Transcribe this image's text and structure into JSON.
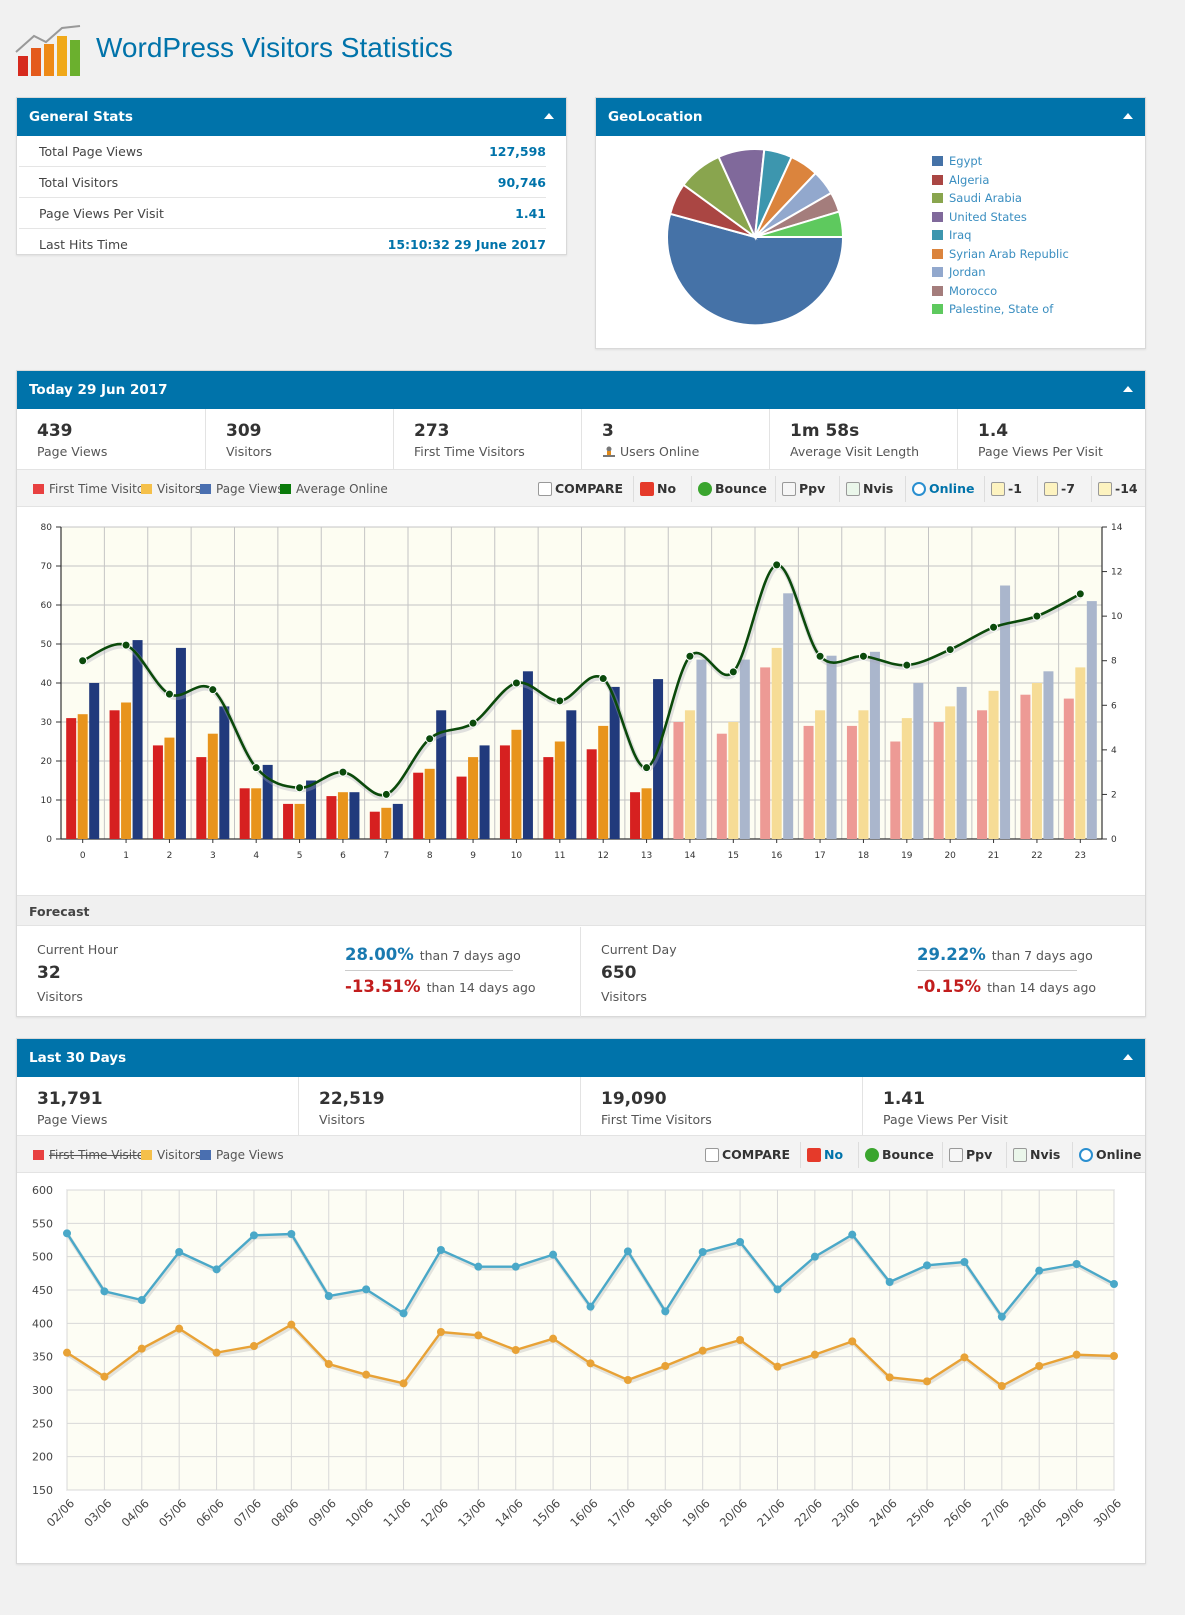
{
  "header": {
    "title": "WordPress Visitors Statistics"
  },
  "general_stats": {
    "title": "General Stats",
    "rows": [
      {
        "label": "Total Page Views",
        "value": "127,598"
      },
      {
        "label": "Total Visitors",
        "value": "90,746"
      },
      {
        "label": "Page Views Per Visit",
        "value": "1.41"
      },
      {
        "label": "Last Hits Time",
        "value": "15:10:32 29 June 2017"
      }
    ]
  },
  "geolocation": {
    "title": "GeoLocation",
    "legend": [
      {
        "name": "Egypt",
        "color": "#4572a7"
      },
      {
        "name": "Algeria",
        "color": "#aa4643"
      },
      {
        "name": "Saudi Arabia",
        "color": "#89a54e"
      },
      {
        "name": "United States",
        "color": "#80699b"
      },
      {
        "name": "Iraq",
        "color": "#3d96ae"
      },
      {
        "name": "Syrian Arab Republic",
        "color": "#db843d"
      },
      {
        "name": "Jordan",
        "color": "#92a8cd"
      },
      {
        "name": "Morocco",
        "color": "#a47d7c"
      },
      {
        "name": "Palestine, State of",
        "color": "#5ec95e"
      }
    ]
  },
  "today": {
    "title": "Today  29 Jun 2017",
    "stats": [
      {
        "value": "439",
        "label": "Page Views"
      },
      {
        "value": "309",
        "label": "Visitors"
      },
      {
        "value": "273",
        "label": "First Time Visitors"
      },
      {
        "value": "3",
        "label": "Users Online"
      },
      {
        "value": "1m 58s",
        "label": "Average Visit Length"
      },
      {
        "value": "1.4",
        "label": "Page Views Per Visit"
      }
    ],
    "legend": [
      "First Time Visitor",
      "Visitors",
      "Page Views",
      "Average Online"
    ],
    "buttons": [
      "COMPARE",
      "No",
      "Bounce",
      "Ppv",
      "Nvis",
      "Online",
      "-1",
      "-7",
      "-14"
    ]
  },
  "forecast": {
    "title": "Forecast",
    "current_hour": {
      "label": "Current Hour",
      "value": "32",
      "unit": "Visitors",
      "p7": "28.00%",
      "p7_text": "than 7 days ago",
      "p14": "-13.51%",
      "p14_text": "than 14 days ago"
    },
    "current_day": {
      "label": "Current Day",
      "value": "650",
      "unit": "Visitors",
      "p7": "29.22%",
      "p7_text": "than 7 days ago",
      "p14": "-0.15%",
      "p14_text": "than 14 days ago"
    }
  },
  "last30": {
    "title": "Last 30 Days",
    "stats": [
      {
        "value": "31,791",
        "label": "Page Views"
      },
      {
        "value": "22,519",
        "label": "Visitors"
      },
      {
        "value": "19,090",
        "label": "First Time Visitors"
      },
      {
        "value": "1.41",
        "label": "Page Views Per Visit"
      }
    ],
    "legend": [
      "First Time Visitor",
      "Visitors",
      "Page Views"
    ],
    "buttons": [
      "COMPARE",
      "No",
      "Bounce",
      "Ppv",
      "Nvis",
      "Online"
    ]
  },
  "chart_data": [
    {
      "type": "bar",
      "categories": [
        "0",
        "1",
        "2",
        "3",
        "4",
        "5",
        "6",
        "7",
        "8",
        "9",
        "10",
        "11",
        "12",
        "13",
        "14",
        "15",
        "16",
        "17",
        "18",
        "19",
        "20",
        "21",
        "22",
        "23"
      ],
      "ylim": [
        0,
        80
      ],
      "y2lim": [
        0,
        14
      ],
      "yticks": [
        0,
        10,
        20,
        30,
        40,
        50,
        60,
        70,
        80
      ],
      "y2ticks": [
        0,
        2,
        4,
        6,
        8,
        10,
        12,
        14
      ],
      "series": [
        {
          "name": "First Time Visitor",
          "color": "#d62020",
          "values": [
            31,
            33,
            24,
            21,
            13,
            9,
            11,
            7,
            17,
            16,
            24,
            21,
            23,
            12,
            30,
            27,
            44,
            29,
            29,
            25,
            30,
            33,
            37,
            36
          ]
        },
        {
          "name": "Visitors",
          "color": "#e8941c",
          "values": [
            32,
            35,
            26,
            27,
            13,
            9,
            12,
            8,
            18,
            21,
            28,
            25,
            29,
            13,
            33,
            30,
            49,
            33,
            33,
            31,
            34,
            38,
            40,
            44
          ]
        },
        {
          "name": "Page Views",
          "color": "#213a7c",
          "values": [
            40,
            51,
            49,
            34,
            19,
            15,
            12,
            9,
            33,
            24,
            43,
            33,
            39,
            41,
            46,
            46,
            63,
            47,
            48,
            40,
            39,
            65,
            43,
            61
          ]
        },
        {
          "name": "Average Online",
          "color": "#0b4a0b",
          "values": [
            8,
            8.7,
            6.5,
            6.7,
            3.2,
            2.3,
            3,
            2,
            4.5,
            5.2,
            7,
            6.2,
            7.2,
            3.2,
            8.2,
            7.5,
            12.3,
            8.2,
            8.2,
            7.8,
            8.5,
            9.5,
            10,
            11
          ]
        }
      ]
    },
    {
      "type": "line",
      "categories": [
        "02/06",
        "03/06",
        "04/06",
        "05/06",
        "06/06",
        "07/06",
        "08/06",
        "09/06",
        "10/06",
        "11/06",
        "12/06",
        "13/06",
        "14/06",
        "15/06",
        "16/06",
        "17/06",
        "18/06",
        "19/06",
        "20/06",
        "21/06",
        "22/06",
        "23/06",
        "24/06",
        "25/06",
        "26/06",
        "27/06",
        "28/06",
        "29/06",
        "30/06"
      ],
      "ylim": [
        150,
        600
      ],
      "yticks": [
        150,
        200,
        250,
        300,
        350,
        400,
        450,
        500,
        550,
        600
      ],
      "series": [
        {
          "name": "Page Views",
          "color": "#4aa8c8",
          "values": [
            535,
            448,
            435,
            507,
            481,
            532,
            534,
            441,
            451,
            415,
            510,
            485,
            485,
            503,
            425,
            508,
            418,
            507,
            522,
            451,
            500,
            533,
            462,
            487,
            492,
            410,
            479,
            489,
            459
          ]
        },
        {
          "name": "Visitors",
          "color": "#e8a236",
          "values": [
            356,
            320,
            362,
            392,
            356,
            366,
            398,
            339,
            323,
            310,
            387,
            382,
            360,
            377,
            340,
            315,
            336,
            359,
            375,
            335,
            353,
            373,
            319,
            313,
            349,
            306,
            336,
            353,
            351
          ]
        }
      ]
    }
  ]
}
